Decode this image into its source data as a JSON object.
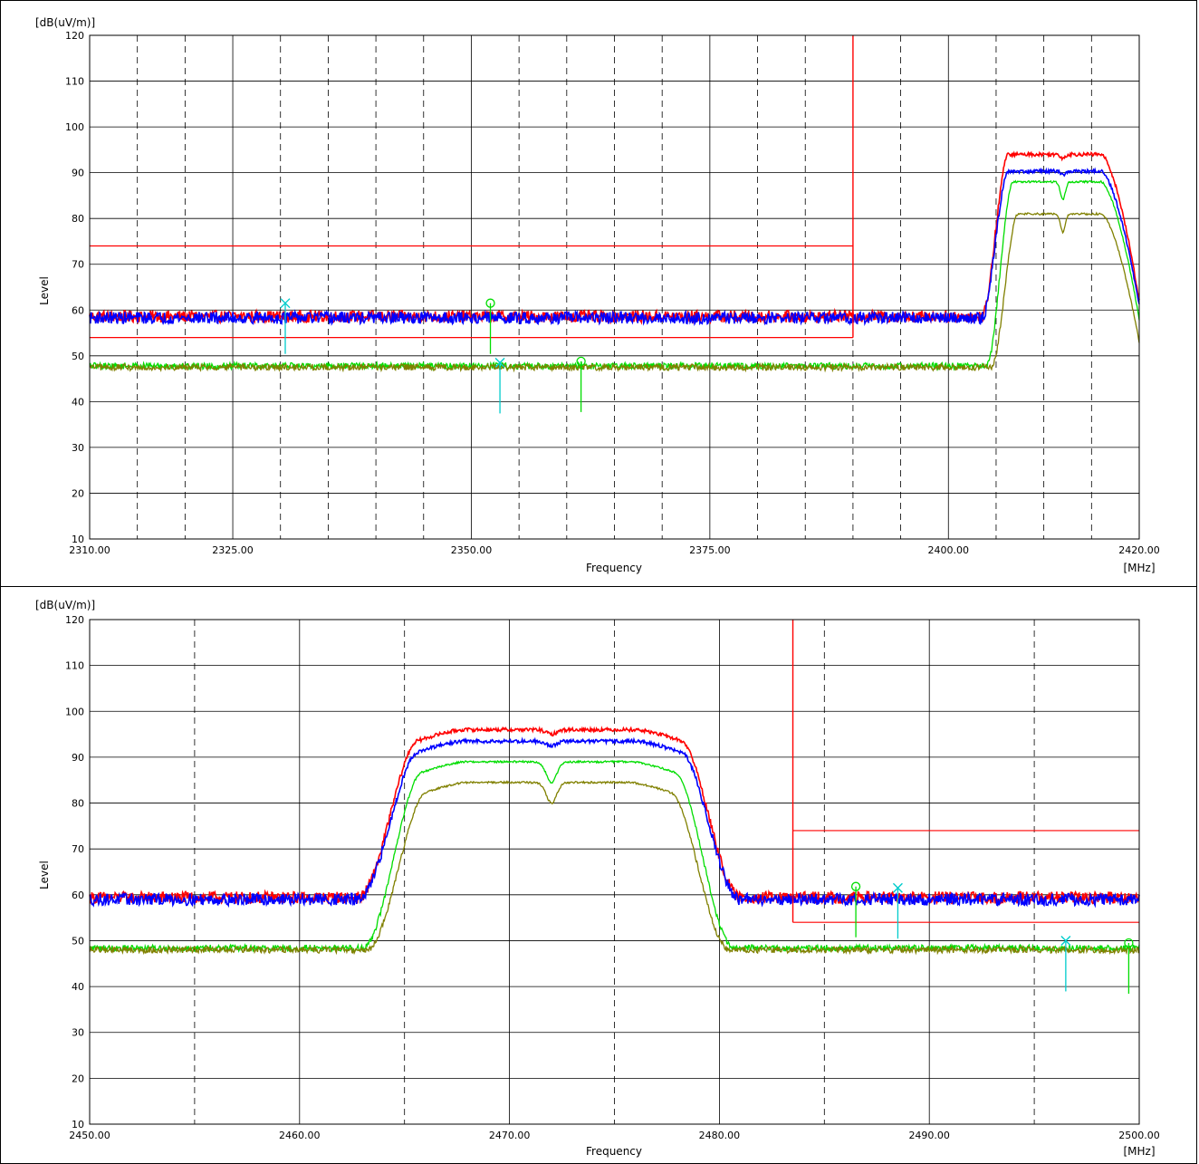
{
  "chart_data": [
    {
      "type": "line",
      "title": "",
      "xlabel": "Frequency",
      "ylabel": "Level",
      "y_unit": "[dB(uV/m)]",
      "x_unit": "[MHz]",
      "xlim": [
        2310,
        2420
      ],
      "ylim": [
        10,
        120
      ],
      "x_tick_labels": [
        "2310.00",
        "2325.00",
        "2350.00",
        "2375.00",
        "2400.00",
        "2420.00"
      ],
      "x_ticks": [
        2310,
        2325,
        2350,
        2375,
        2400,
        2420
      ],
      "x_major_grid": [
        2310,
        2325,
        2350,
        2375,
        2400,
        2420
      ],
      "x_minor_grid": [
        2315,
        2320,
        2330,
        2335,
        2340,
        2345,
        2355,
        2360,
        2365,
        2370,
        2380,
        2385,
        2390,
        2395,
        2405,
        2410,
        2415
      ],
      "y_ticks": [
        10,
        20,
        30,
        40,
        50,
        60,
        70,
        80,
        90,
        100,
        110,
        120
      ],
      "y_tick_labels": [
        "10",
        "20",
        "30",
        "40",
        "50",
        "60",
        "70",
        "80",
        "90",
        "100",
        "110",
        "120"
      ],
      "grid": true,
      "limit_lines": {
        "color": "#ff0000",
        "peak_limit": {
          "x": [
            2310,
            2390
          ],
          "y": 74
        },
        "average_limit": {
          "x": [
            2310,
            2390
          ],
          "y": 54
        },
        "band_edge": {
          "x": 2390,
          "y": [
            54,
            120
          ]
        }
      },
      "series": [
        {
          "color": "#ff0000",
          "noise_floor": 58.6,
          "hump": {
            "start": 2403.5,
            "end": 2420,
            "plateau": 94.0,
            "dip_at": 2412.0,
            "dip_depth": 0.8,
            "edge_value": 62.0
          }
        },
        {
          "color": "#0000ff",
          "noise_floor": 58.3,
          "hump": {
            "start": 2403.5,
            "end": 2420,
            "plateau": 90.3,
            "dip_at": 2412.0,
            "dip_depth": 0.8,
            "edge_value": 61.0
          }
        },
        {
          "color": "#00dd00",
          "noise_floor": 47.8,
          "hump": {
            "start": 2404.0,
            "end": 2420,
            "plateau": 88.0,
            "dip_at": 2412.0,
            "dip_depth": 4.0,
            "edge_value": 58.0
          }
        },
        {
          "color": "#808000",
          "noise_floor": 47.5,
          "hump": {
            "start": 2404.5,
            "end": 2420,
            "plateau": 81.0,
            "dip_at": 2412.0,
            "dip_depth": 4.0,
            "edge_value": 53.0
          }
        }
      ],
      "markers": [
        {
          "shape": "x",
          "color": "#00cccc",
          "x": 2330.5,
          "y": 61.5
        },
        {
          "shape": "o",
          "color": "#00dd00",
          "x": 2352.0,
          "y": 61.5
        },
        {
          "shape": "x",
          "color": "#00cccc",
          "x": 2353.0,
          "y": 48.5
        },
        {
          "shape": "o",
          "color": "#00dd00",
          "x": 2361.5,
          "y": 48.8
        }
      ]
    },
    {
      "type": "line",
      "title": "",
      "xlabel": "Frequency",
      "ylabel": "Level",
      "y_unit": "[dB(uV/m)]",
      "x_unit": "[MHz]",
      "xlim": [
        2450,
        2500
      ],
      "ylim": [
        10,
        120
      ],
      "x_tick_labels": [
        "2450.00",
        "2460.00",
        "2470.00",
        "2480.00",
        "2490.00",
        "2500.00"
      ],
      "x_ticks": [
        2450,
        2460,
        2470,
        2480,
        2490,
        2500
      ],
      "x_major_grid": [
        2450,
        2460,
        2470,
        2480,
        2490,
        2500
      ],
      "x_minor_grid": [
        2455,
        2465,
        2475,
        2485,
        2495
      ],
      "y_ticks": [
        10,
        20,
        30,
        40,
        50,
        60,
        70,
        80,
        90,
        100,
        110,
        120
      ],
      "y_tick_labels": [
        "10",
        "20",
        "30",
        "40",
        "50",
        "60",
        "70",
        "80",
        "90",
        "100",
        "110",
        "120"
      ],
      "grid": true,
      "limit_lines": {
        "color": "#ff0000",
        "peak_limit": {
          "x": [
            2483.5,
            2500
          ],
          "y": 74
        },
        "average_limit": {
          "x": [
            2483.5,
            2500
          ],
          "y": 54
        },
        "band_edge": {
          "x": 2483.5,
          "y": [
            54,
            120
          ]
        }
      },
      "series": [
        {
          "color": "#ff0000",
          "noise_floor": 59.4,
          "hump": {
            "start": 2462.8,
            "end": 2481.0,
            "plateau": 96.0,
            "dip_at": 2472.0,
            "dip_depth": 1.0
          }
        },
        {
          "color": "#0000ff",
          "noise_floor": 59.0,
          "hump": {
            "start": 2462.8,
            "end": 2481.0,
            "plateau": 93.5,
            "dip_at": 2472.0,
            "dip_depth": 1.0
          }
        },
        {
          "color": "#00dd00",
          "noise_floor": 48.4,
          "hump": {
            "start": 2463.0,
            "end": 2480.7,
            "plateau": 89.0,
            "dip_at": 2472.0,
            "dip_depth": 4.5
          }
        },
        {
          "color": "#808000",
          "noise_floor": 48.0,
          "hump": {
            "start": 2463.2,
            "end": 2480.5,
            "plateau": 84.5,
            "dip_at": 2472.0,
            "dip_depth": 4.5
          }
        }
      ],
      "markers": [
        {
          "shape": "o",
          "color": "#00dd00",
          "x": 2486.5,
          "y": 61.8
        },
        {
          "shape": "x",
          "color": "#00cccc",
          "x": 2488.5,
          "y": 61.5
        },
        {
          "shape": "x",
          "color": "#00cccc",
          "x": 2496.5,
          "y": 50.0
        },
        {
          "shape": "o",
          "color": "#00dd00",
          "x": 2499.5,
          "y": 49.5
        }
      ]
    }
  ]
}
